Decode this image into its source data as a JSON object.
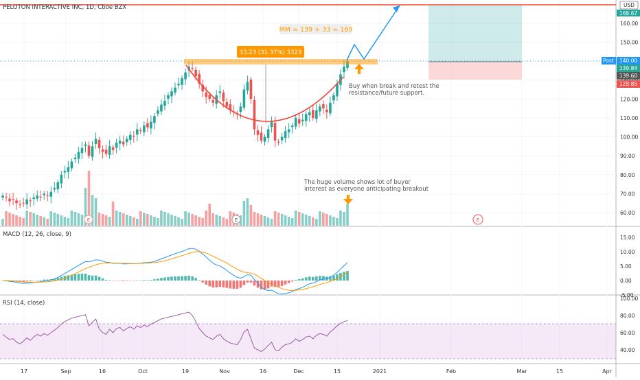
{
  "header": {
    "title": "PELOTON INTERACTIVE INC, 1D, Cboe BZX"
  },
  "price_axis": {
    "currency": "USD",
    "ticks": [
      "160.00",
      "150.00",
      "140.00",
      "130.00",
      "120.00",
      "110.00",
      "100.00",
      "90.00",
      "80.00",
      "70.00",
      "60.00"
    ]
  },
  "price_labels": {
    "target": "168.67",
    "post_tag": "Post",
    "post": "140.00",
    "last": "139.84",
    "entry": "139.60",
    "stop": "129.85"
  },
  "macd_panel": {
    "title": "MACD (12, 26, close, 9)",
    "ticks": [
      "15.00",
      "10.00",
      "5.00",
      "0.00",
      "-5.00"
    ]
  },
  "rsi_panel": {
    "title": "RSI (14, close)",
    "ticks": [
      "100.00",
      "80.00",
      "60.00",
      "40.00"
    ]
  },
  "time_axis": {
    "labels": [
      "17",
      "Sep",
      "16",
      "Oct",
      "19",
      "Nov",
      "16",
      "Dec",
      "15",
      "2021",
      "Feb",
      "Mar",
      "15",
      "Apr"
    ]
  },
  "annotations": {
    "measured_move": "MM = 139 + 33 = 169",
    "range_label": "33.23 (31.37%) 3323",
    "buy_note_line1": "Buy when break and retest the",
    "buy_note_line2": "resistance/future support.",
    "volume_note_line1": "The huge volume shows lot of buyer",
    "volume_note_line2": "interest as everyone anticipating breakout",
    "earnings_marker": "E"
  },
  "colors": {
    "up": "#26a69a",
    "down": "#ef5350",
    "macd_line": "#2196f3",
    "signal_line": "#ff9800",
    "rsi_line": "#9c5aa6",
    "highlight": "#ff9800",
    "target_line": "#f44336"
  },
  "chart_data": {
    "type": "candlestick",
    "title": "PELOTON INTERACTIVE INC, 1D, Cboe BZX",
    "y_range": [
      52,
      174
    ],
    "resistance": 139,
    "target": 168.67,
    "entry": 139.6,
    "stop": 129.85,
    "closes": [
      69,
      68,
      66,
      67,
      65,
      64,
      65,
      67,
      66,
      68,
      69,
      68,
      70,
      69,
      71,
      73,
      76,
      80,
      82,
      84,
      87,
      89,
      92,
      94,
      96,
      90,
      95,
      99,
      94,
      92,
      91,
      95,
      93,
      97,
      98,
      96,
      99,
      101,
      100,
      104,
      103,
      106,
      105,
      108,
      111,
      114,
      117,
      119,
      122,
      124,
      126,
      128,
      131,
      134,
      137,
      136,
      132,
      128,
      124,
      121,
      120,
      118,
      122,
      124,
      119,
      116,
      114,
      113,
      112,
      116,
      125,
      129,
      120,
      104,
      101,
      98,
      100,
      104,
      108,
      98,
      97,
      100,
      103,
      104,
      106,
      110,
      107,
      109,
      112,
      113,
      110,
      114,
      116,
      115,
      113,
      118,
      122,
      128,
      133,
      137,
      139.84
    ],
    "rsi": [
      58,
      55,
      52,
      53,
      49,
      47,
      50,
      54,
      51,
      55,
      58,
      56,
      59,
      57,
      60,
      63,
      66,
      70,
      73,
      75,
      77,
      78,
      79,
      80,
      81,
      68,
      72,
      76,
      64,
      60,
      58,
      64,
      60,
      65,
      66,
      62,
      65,
      67,
      64,
      68,
      66,
      69,
      67,
      70,
      72,
      74,
      76,
      77,
      78,
      79,
      80,
      81,
      82,
      83,
      84,
      80,
      73,
      65,
      60,
      56,
      54,
      52,
      56,
      58,
      53,
      50,
      48,
      47,
      46,
      52,
      61,
      64,
      53,
      42,
      40,
      38,
      41,
      45,
      49,
      40,
      39,
      43,
      46,
      47,
      49,
      53,
      50,
      52,
      55,
      56,
      53,
      57,
      59,
      58,
      56,
      61,
      64,
      68,
      71,
      73,
      74
    ],
    "volume_note": "The huge volume shows lot of buyer interest as everyone anticipating breakout"
  }
}
